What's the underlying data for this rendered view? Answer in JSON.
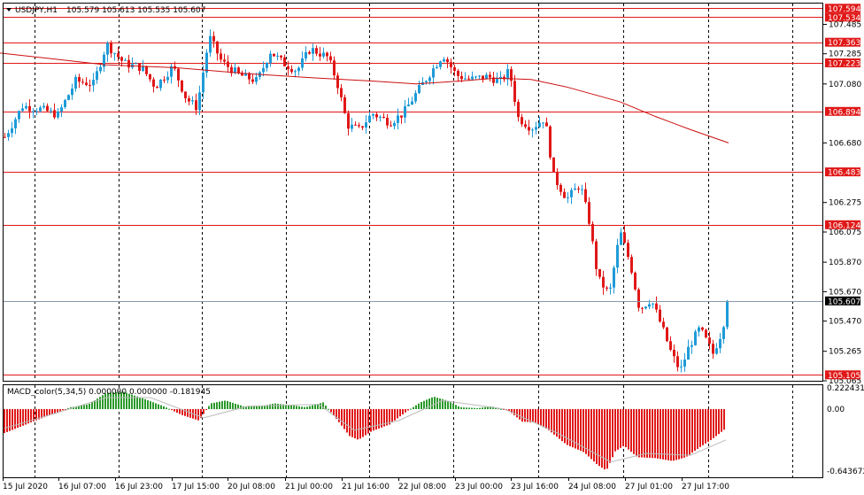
{
  "header": {
    "symbol_timeframe": "USDJPY,H1",
    "ohlc": "105.579 105.613 105.535 105.607"
  },
  "indicator": {
    "label": "MACD_color(5,34,5) 0.000000 0.000000 -0.181945"
  },
  "colors": {
    "bull": "#1e9bd7",
    "bear": "#e01818",
    "level": "#e01818",
    "ma": "#cc1010",
    "hist_pos": "#2a9a2a",
    "hist_neg": "#e01818",
    "signal": "#bbbbbb"
  },
  "chart_data": [
    {
      "type": "candlestick",
      "symbol": "USDJPY",
      "timeframe": "H1",
      "price_ticks": [
        "107.485",
        "107.285",
        "107.080",
        "106.680",
        "106.275",
        "106.075",
        "105.870",
        "105.670",
        "105.470",
        "105.265",
        "105.065"
      ],
      "ylim": [
        105.065,
        107.62
      ],
      "time_labels": [
        "15 Jul 2020",
        "16 Jul 07:00",
        "16 Jul 23:00",
        "17 Jul 15:00",
        "20 Jul 08:00",
        "21 Jul 00:00",
        "21 Jul 16:00",
        "22 Jul 08:00",
        "23 Jul 00:00",
        "23 Jul 16:00",
        "24 Jul 08:00",
        "27 Jul 01:00",
        "27 Jul 17:00"
      ],
      "current_price": "105.607",
      "levels": [
        {
          "price": 107.594,
          "label": "107.594"
        },
        {
          "price": 107.534,
          "label": "107.534"
        },
        {
          "price": 107.363,
          "label": "107.363"
        },
        {
          "price": 107.223,
          "label": "107.223"
        },
        {
          "price": 106.894,
          "label": "106.894"
        },
        {
          "price": 106.483,
          "label": "106.483"
        },
        {
          "price": 106.124,
          "label": "106.124"
        },
        {
          "price": 105.105,
          "label": "105.105"
        }
      ],
      "moving_average": [
        [
          0,
          107.29
        ],
        [
          60,
          107.25
        ],
        [
          120,
          107.21
        ],
        [
          200,
          107.19
        ],
        [
          280,
          107.15
        ],
        [
          360,
          107.12
        ],
        [
          420,
          107.1
        ],
        [
          470,
          107.08
        ],
        [
          520,
          107.1
        ],
        [
          560,
          107.12
        ],
        [
          600,
          107.11
        ],
        [
          640,
          107.06
        ],
        [
          700,
          106.96
        ],
        [
          740,
          106.86
        ],
        [
          780,
          106.77
        ],
        [
          823,
          106.68
        ]
      ],
      "close_path": [
        [
          5,
          106.72
        ],
        [
          25,
          106.93
        ],
        [
          45,
          106.91
        ],
        [
          65,
          106.87
        ],
        [
          85,
          107.1
        ],
        [
          105,
          107.08
        ],
        [
          120,
          107.35
        ],
        [
          140,
          107.22
        ],
        [
          160,
          107.19
        ],
        [
          175,
          107.06
        ],
        [
          195,
          107.2
        ],
        [
          210,
          106.98
        ],
        [
          222,
          106.92
        ],
        [
          236,
          107.4
        ],
        [
          250,
          107.23
        ],
        [
          270,
          107.14
        ],
        [
          290,
          107.1
        ],
        [
          305,
          107.3
        ],
        [
          320,
          107.22
        ],
        [
          335,
          107.17
        ],
        [
          350,
          107.32
        ],
        [
          370,
          107.26
        ],
        [
          380,
          107.1
        ],
        [
          392,
          106.8
        ],
        [
          405,
          106.77
        ],
        [
          420,
          106.88
        ],
        [
          440,
          106.82
        ],
        [
          455,
          106.88
        ],
        [
          470,
          107.02
        ],
        [
          485,
          107.15
        ],
        [
          500,
          107.28
        ],
        [
          515,
          107.14
        ],
        [
          530,
          107.11
        ],
        [
          550,
          107.13
        ],
        [
          565,
          107.1
        ],
        [
          575,
          107.17
        ],
        [
          585,
          106.85
        ],
        [
          600,
          106.78
        ],
        [
          615,
          106.85
        ],
        [
          625,
          106.45
        ],
        [
          640,
          106.3
        ],
        [
          655,
          106.4
        ],
        [
          665,
          106.15
        ],
        [
          675,
          105.76
        ],
        [
          688,
          105.65
        ],
        [
          700,
          106.08
        ],
        [
          712,
          105.85
        ],
        [
          722,
          105.55
        ],
        [
          735,
          105.62
        ],
        [
          748,
          105.42
        ],
        [
          758,
          105.25
        ],
        [
          768,
          105.13
        ],
        [
          778,
          105.3
        ],
        [
          790,
          105.42
        ],
        [
          805,
          105.25
        ],
        [
          815,
          105.4
        ],
        [
          822,
          105.607
        ]
      ]
    },
    {
      "type": "bar",
      "name": "MACD_color(5,34,5)",
      "value_ticks": [
        "0.222431",
        "0.00",
        "-0.643672"
      ],
      "ylim": [
        -0.7,
        0.24
      ],
      "histogram_path": [
        [
          5,
          -0.25
        ],
        [
          40,
          -0.12
        ],
        [
          80,
          0.02
        ],
        [
          100,
          0.05
        ],
        [
          120,
          0.17
        ],
        [
          140,
          0.18
        ],
        [
          165,
          0.1
        ],
        [
          185,
          0.03
        ],
        [
          205,
          -0.06
        ],
        [
          225,
          -0.12
        ],
        [
          238,
          0.06
        ],
        [
          255,
          0.09
        ],
        [
          275,
          0.03
        ],
        [
          295,
          0.03
        ],
        [
          310,
          0.06
        ],
        [
          330,
          0.04
        ],
        [
          345,
          0.02
        ],
        [
          365,
          0.07
        ],
        [
          380,
          -0.1
        ],
        [
          395,
          -0.28
        ],
        [
          405,
          -0.32
        ],
        [
          420,
          -0.23
        ],
        [
          440,
          -0.16
        ],
        [
          460,
          -0.02
        ],
        [
          475,
          0.07
        ],
        [
          490,
          0.13
        ],
        [
          505,
          0.09
        ],
        [
          520,
          0.02
        ],
        [
          540,
          0.01
        ],
        [
          555,
          0.03
        ],
        [
          575,
          -0.02
        ],
        [
          590,
          -0.13
        ],
        [
          605,
          -0.14
        ],
        [
          620,
          -0.22
        ],
        [
          640,
          -0.37
        ],
        [
          660,
          -0.45
        ],
        [
          675,
          -0.58
        ],
        [
          685,
          -0.64
        ],
        [
          695,
          -0.44
        ],
        [
          705,
          -0.38
        ],
        [
          720,
          -0.5
        ],
        [
          740,
          -0.51
        ],
        [
          760,
          -0.54
        ],
        [
          775,
          -0.5
        ],
        [
          790,
          -0.4
        ],
        [
          805,
          -0.31
        ],
        [
          820,
          -0.2
        ]
      ],
      "signal_path": [
        [
          5,
          -0.2
        ],
        [
          60,
          -0.05
        ],
        [
          120,
          0.12
        ],
        [
          170,
          0.12
        ],
        [
          230,
          -0.09
        ],
        [
          280,
          0.03
        ],
        [
          360,
          0.05
        ],
        [
          400,
          -0.22
        ],
        [
          450,
          -0.12
        ],
        [
          500,
          0.09
        ],
        [
          570,
          0.0
        ],
        [
          630,
          -0.25
        ],
        [
          690,
          -0.55
        ],
        [
          730,
          -0.46
        ],
        [
          780,
          -0.48
        ],
        [
          820,
          -0.32
        ]
      ]
    }
  ]
}
